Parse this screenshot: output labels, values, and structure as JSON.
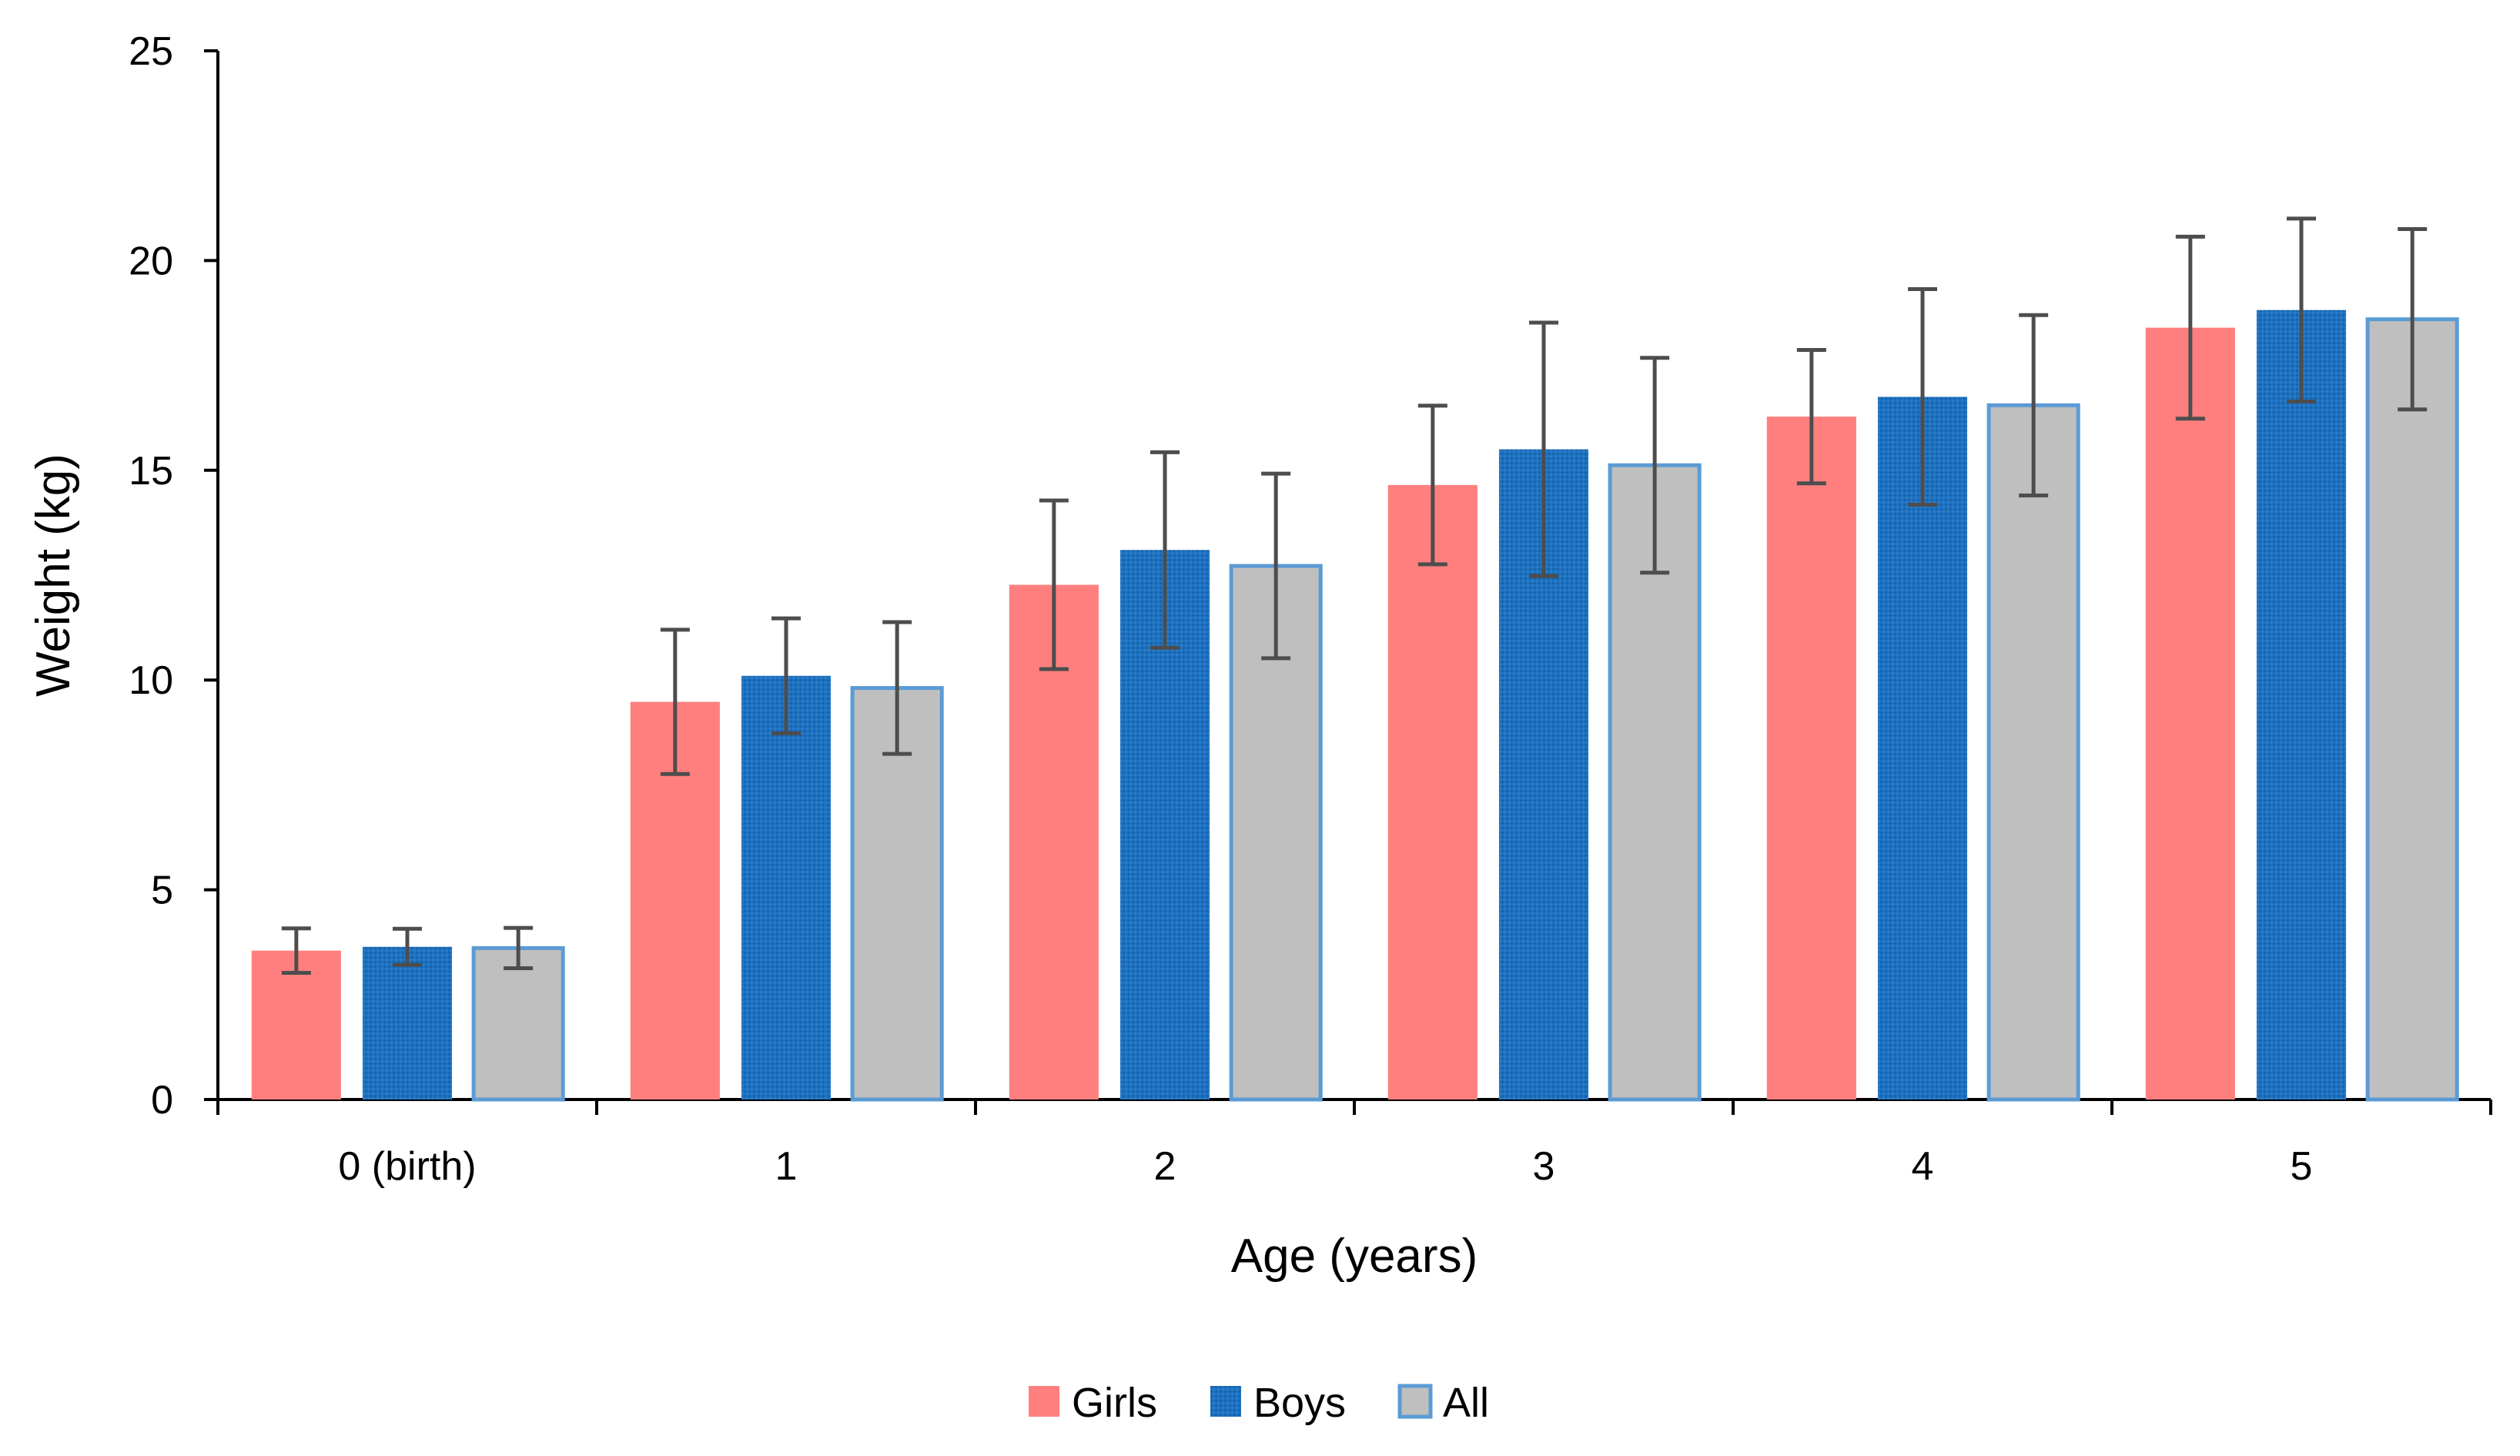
{
  "chart_data": {
    "type": "bar",
    "title": "",
    "xlabel": "Age (years)",
    "ylabel": "Weight (kg)",
    "ylim": [
      0,
      25
    ],
    "yticks": [
      "0",
      "5",
      "10",
      "15",
      "20",
      "25"
    ],
    "grid": false,
    "legend_position": "bottom-center",
    "categories": [
      "0 (birth)",
      "1",
      "2",
      "3",
      "4",
      "5"
    ],
    "series": [
      {
        "name": "Girls",
        "color": "#FF7F7F",
        "pattern": "solid",
        "values": [
          3.55,
          9.48,
          12.27,
          14.65,
          16.28,
          18.4
        ],
        "error": [
          0.53,
          1.72,
          2.01,
          1.89,
          1.59,
          2.17
        ]
      },
      {
        "name": "Boys",
        "color": "#1E72C0",
        "pattern": "dotted",
        "values": [
          3.64,
          10.1,
          13.1,
          15.5,
          16.75,
          18.82
        ],
        "error": [
          0.43,
          1.37,
          2.33,
          3.02,
          2.57,
          2.18
        ]
      },
      {
        "name": "All",
        "color": "#BFBFBF",
        "border": "#5B9BD5",
        "pattern": "solid",
        "values": [
          3.61,
          9.81,
          12.72,
          15.12,
          16.55,
          18.6
        ],
        "error": [
          0.48,
          1.57,
          2.2,
          2.56,
          2.15,
          2.15
        ]
      }
    ]
  }
}
